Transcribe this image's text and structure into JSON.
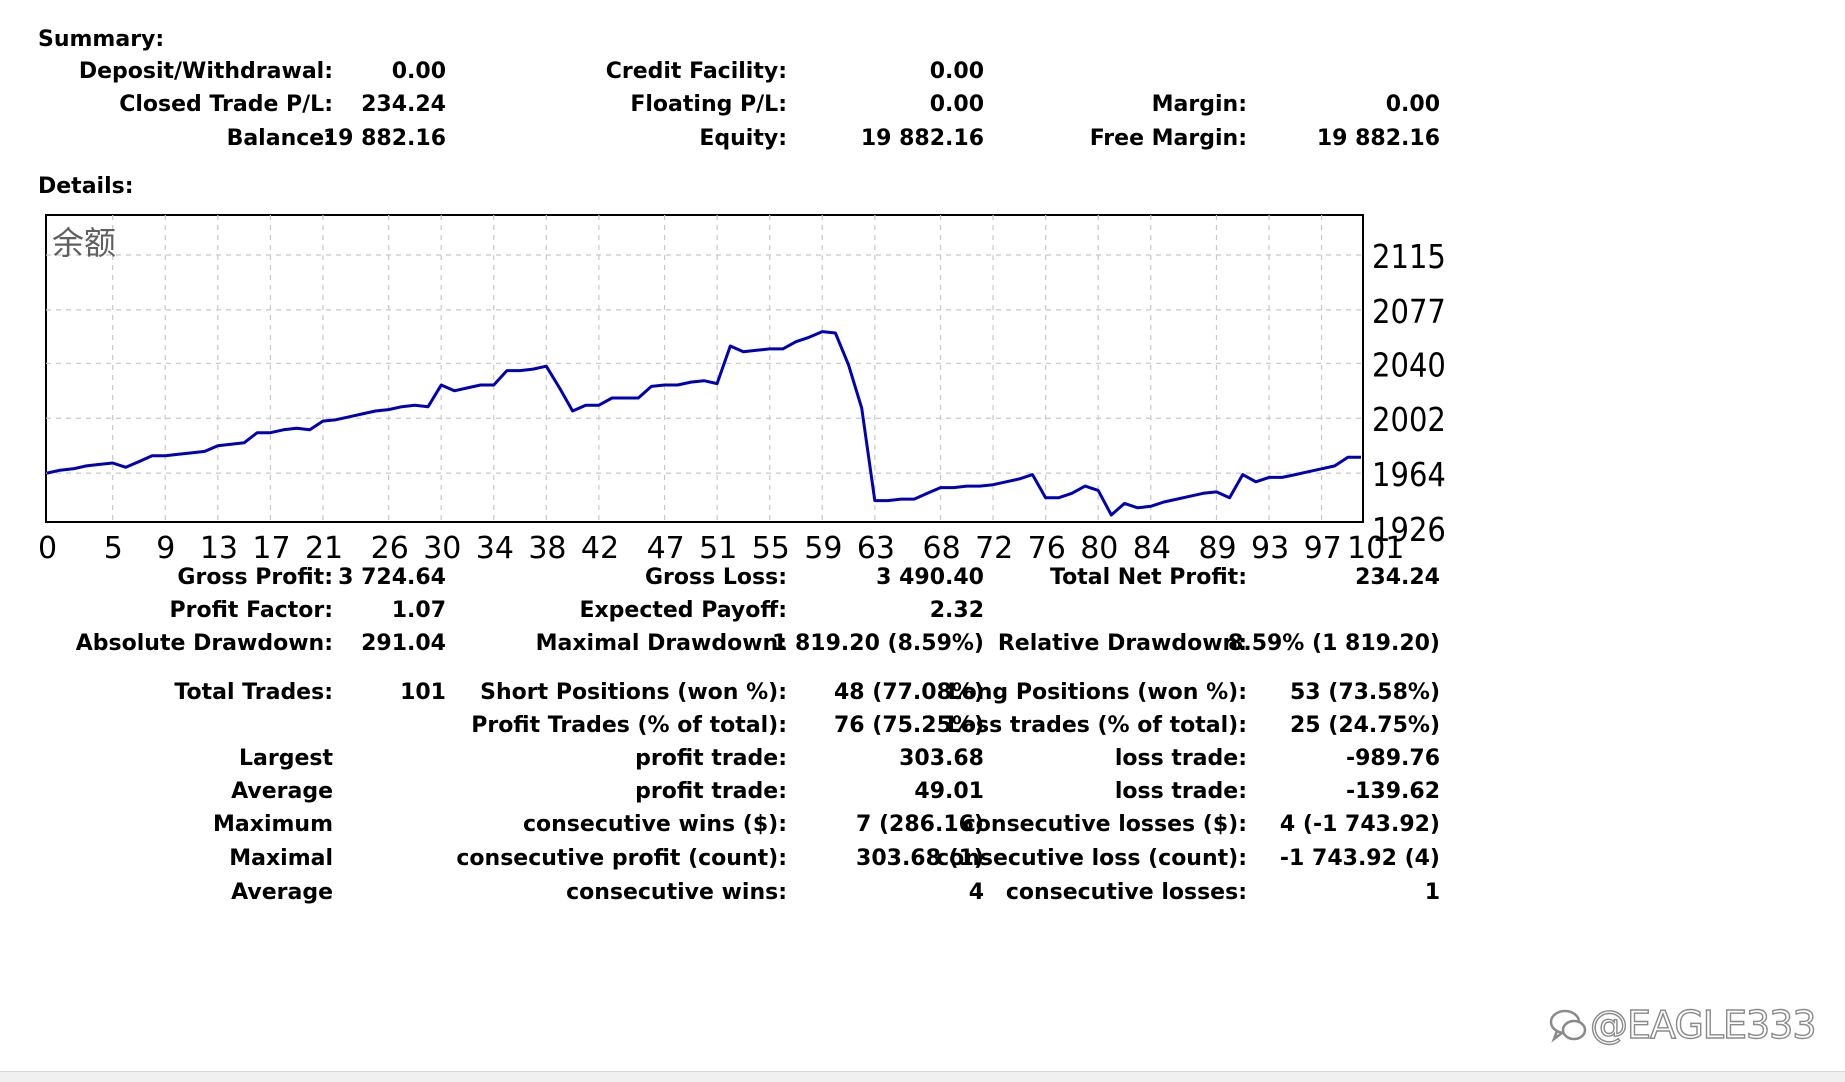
{
  "summary": {
    "title": "Summary:",
    "rows": [
      [
        {
          "label": "Deposit/Withdrawal:",
          "value": "0.00"
        },
        {
          "label": "Credit Facility:",
          "value": "0.00"
        },
        {
          "label": "",
          "value": ""
        }
      ],
      [
        {
          "label": "Closed Trade P/L:",
          "value": "234.24"
        },
        {
          "label": "Floating P/L:",
          "value": "0.00"
        },
        {
          "label": "Margin:",
          "value": "0.00"
        }
      ],
      [
        {
          "label": "Balance:",
          "value": "19 882.16"
        },
        {
          "label": "Equity:",
          "value": "19 882.16"
        },
        {
          "label": "Free Margin:",
          "value": "19 882.16"
        }
      ]
    ]
  },
  "details": {
    "title": "Details:",
    "rows": [
      [
        {
          "label": "Gross Profit:",
          "value": "3 724.64"
        },
        {
          "label": "Gross Loss:",
          "value": "3 490.40"
        },
        {
          "label": "Total Net Profit:",
          "value": "234.24"
        }
      ],
      [
        {
          "label": "Profit Factor:",
          "value": "1.07"
        },
        {
          "label": "Expected Payoff:",
          "value": "2.32"
        },
        {
          "label": "",
          "value": ""
        }
      ],
      [
        {
          "label": "Absolute Drawdown:",
          "value": "291.04"
        },
        {
          "label": "Maximal Drawdown:",
          "value": "1 819.20 (8.59%)"
        },
        {
          "label": "Relative Drawdown:",
          "value": "8.59% (1 819.20)"
        }
      ],
      [
        {
          "label": "Total Trades:",
          "value": "101"
        },
        {
          "label": "Short Positions (won %):",
          "value": "48 (77.08%)"
        },
        {
          "label": "Long Positions (won %):",
          "value": "53 (73.58%)"
        }
      ],
      [
        {
          "label": "",
          "value": ""
        },
        {
          "label": "Profit Trades (% of total):",
          "value": "76 (75.25%)"
        },
        {
          "label": "Loss trades (% of total):",
          "value": "25 (24.75%)"
        }
      ],
      [
        {
          "label": "Largest",
          "value": ""
        },
        {
          "label": "profit trade:",
          "value": "303.68"
        },
        {
          "label": "loss trade:",
          "value": "-989.76"
        }
      ],
      [
        {
          "label": "Average",
          "value": ""
        },
        {
          "label": "profit trade:",
          "value": "49.01"
        },
        {
          "label": "loss trade:",
          "value": "-139.62"
        }
      ],
      [
        {
          "label": "Maximum",
          "value": ""
        },
        {
          "label": "consecutive wins ($):",
          "value": "7 (286.16)"
        },
        {
          "label": "consecutive losses ($):",
          "value": "4 (-1 743.92)"
        }
      ],
      [
        {
          "label": "Maximal",
          "value": ""
        },
        {
          "label": "consecutive profit (count):",
          "value": "303.68 (1)"
        },
        {
          "label": "consecutive loss (count):",
          "value": "-1 743.92 (4)"
        }
      ],
      [
        {
          "label": "Average",
          "value": ""
        },
        {
          "label": "consecutive wins:",
          "value": "4"
        },
        {
          "label": "consecutive losses:",
          "value": "1"
        }
      ]
    ]
  },
  "chart_data": {
    "type": "line",
    "title": "余额",
    "series": [
      {
        "points": [
          [
            0,
            1964
          ],
          [
            1,
            1966
          ],
          [
            2,
            1967
          ],
          [
            3,
            1969
          ],
          [
            4,
            1970
          ],
          [
            5,
            1971
          ],
          [
            6,
            1968
          ],
          [
            7,
            1972
          ],
          [
            8,
            1976
          ],
          [
            9,
            1976
          ],
          [
            10,
            1977
          ],
          [
            11,
            1978
          ],
          [
            12,
            1979
          ],
          [
            13,
            1983
          ],
          [
            14,
            1984
          ],
          [
            15,
            1985
          ],
          [
            16,
            1992
          ],
          [
            17,
            1992
          ],
          [
            18,
            1994
          ],
          [
            19,
            1995
          ],
          [
            20,
            1994
          ],
          [
            21,
            2000
          ],
          [
            22,
            2001
          ],
          [
            23,
            2003
          ],
          [
            24,
            2005
          ],
          [
            25,
            2007
          ],
          [
            26,
            2008
          ],
          [
            27,
            2010
          ],
          [
            28,
            2011
          ],
          [
            29,
            2010
          ],
          [
            30,
            2025
          ],
          [
            31,
            2021
          ],
          [
            32,
            2023
          ],
          [
            33,
            2025
          ],
          [
            34,
            2025
          ],
          [
            35,
            2035
          ],
          [
            36,
            2035
          ],
          [
            37,
            2036
          ],
          [
            38,
            2038
          ],
          [
            39,
            2023
          ],
          [
            40,
            2007
          ],
          [
            41,
            2011
          ],
          [
            42,
            2011
          ],
          [
            43,
            2016
          ],
          [
            44,
            2016
          ],
          [
            45,
            2016
          ],
          [
            46,
            2024
          ],
          [
            47,
            2025
          ],
          [
            48,
            2025
          ],
          [
            49,
            2027
          ],
          [
            50,
            2028
          ],
          [
            51,
            2026
          ],
          [
            52,
            2052
          ],
          [
            53,
            2048
          ],
          [
            54,
            2049
          ],
          [
            55,
            2050
          ],
          [
            56,
            2050
          ],
          [
            57,
            2055
          ],
          [
            58,
            2058
          ],
          [
            59,
            2062
          ],
          [
            60,
            2061
          ],
          [
            61,
            2039
          ],
          [
            62,
            2009
          ],
          [
            63,
            1945
          ],
          [
            64,
            1945
          ],
          [
            65,
            1946
          ],
          [
            66,
            1946
          ],
          [
            67,
            1950
          ],
          [
            68,
            1954
          ],
          [
            69,
            1954
          ],
          [
            70,
            1955
          ],
          [
            71,
            1955
          ],
          [
            72,
            1956
          ],
          [
            73,
            1958
          ],
          [
            74,
            1960
          ],
          [
            75,
            1963
          ],
          [
            76,
            1947
          ],
          [
            77,
            1947
          ],
          [
            78,
            1950
          ],
          [
            79,
            1955
          ],
          [
            80,
            1952
          ],
          [
            81,
            1935
          ],
          [
            82,
            1943
          ],
          [
            83,
            1940
          ],
          [
            84,
            1941
          ],
          [
            85,
            1944
          ],
          [
            86,
            1946
          ],
          [
            87,
            1948
          ],
          [
            88,
            1950
          ],
          [
            89,
            1951
          ],
          [
            90,
            1947
          ],
          [
            91,
            1963
          ],
          [
            92,
            1958
          ],
          [
            93,
            1961
          ],
          [
            94,
            1961
          ],
          [
            95,
            1963
          ],
          [
            96,
            1965
          ],
          [
            97,
            1967
          ],
          [
            98,
            1969
          ],
          [
            99,
            1975
          ],
          [
            100,
            1975
          ]
        ]
      }
    ],
    "ylabels": [
      "2115",
      "2077",
      "2040",
      "2002",
      "1964",
      "1926"
    ],
    "xlabels": [
      "0",
      "5",
      "9",
      "13",
      "17",
      "21",
      "26",
      "30",
      "34",
      "38",
      "42",
      "47",
      "51",
      "55",
      "59",
      "63",
      "68",
      "72",
      "76",
      "80",
      "84",
      "89",
      "93",
      "97",
      "101"
    ],
    "ylim": [
      1926,
      2134
    ],
    "xlim": [
      0,
      100
    ],
    "line_color": "#0000b4",
    "grid": true
  },
  "watermark": {
    "text": "@EAGLE333"
  }
}
